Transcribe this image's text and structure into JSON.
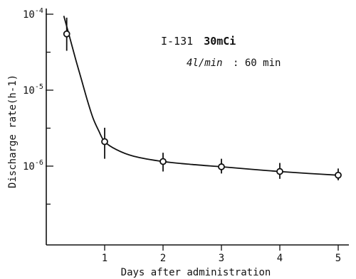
{
  "chart_data": {
    "type": "scatter",
    "title": "",
    "xlabel": "Days after administration",
    "ylabel": "Discharge rate(h-1)",
    "annotation": {
      "line1_prefix": "I-131",
      "line1_bold": "30mCi",
      "line2_flow": "4l/min",
      "line2_time": ": 60 min"
    },
    "x_ticks": [
      1,
      2,
      3,
      4,
      5
    ],
    "y_ticks": [
      {
        "base": "10",
        "exp": "-4",
        "value": 0.0001
      },
      {
        "base": "10",
        "exp": "-5",
        "value": 1e-05
      },
      {
        "base": "10",
        "exp": "-6",
        "value": 1e-06
      }
    ],
    "xlim": [
      0,
      5.15
    ],
    "ylim": [
      1e-07,
      0.0001
    ],
    "y_scale": "log",
    "grid": false,
    "series": [
      {
        "points": [
          {
            "x": 0.35,
            "y": 5.5e-05,
            "err_low": 3.3e-05,
            "err_high": 9e-05
          },
          {
            "x": 1.0,
            "y": 2.1e-06,
            "err_low": 1.25e-06,
            "err_high": 3.2e-06
          },
          {
            "x": 2.0,
            "y": 1.15e-06,
            "err_low": 8.5e-07,
            "err_high": 1.5e-06
          },
          {
            "x": 3.0,
            "y": 9.8e-07,
            "err_low": 8e-07,
            "err_high": 1.25e-06
          },
          {
            "x": 4.0,
            "y": 8.5e-07,
            "err_low": 6.8e-07,
            "err_high": 1.1e-06
          },
          {
            "x": 5.0,
            "y": 7.6e-07,
            "err_low": 6.5e-07,
            "err_high": 9.3e-07
          }
        ],
        "fit_curve": [
          [
            0.3,
            9.5e-05
          ],
          [
            0.4,
            5e-05
          ],
          [
            0.5,
            2.6e-05
          ],
          [
            0.6,
            1.4e-05
          ],
          [
            0.7,
            7.5e-06
          ],
          [
            0.8,
            4.3e-06
          ],
          [
            0.9,
            2.9e-06
          ],
          [
            1.0,
            2.1e-06
          ],
          [
            1.2,
            1.65e-06
          ],
          [
            1.5,
            1.35e-06
          ],
          [
            2.0,
            1.15e-06
          ],
          [
            2.5,
            1.05e-06
          ],
          [
            3.0,
            9.8e-07
          ],
          [
            3.5,
            9.1e-07
          ],
          [
            4.0,
            8.5e-07
          ],
          [
            4.5,
            8e-07
          ],
          [
            5.0,
            7.6e-07
          ]
        ]
      }
    ]
  }
}
